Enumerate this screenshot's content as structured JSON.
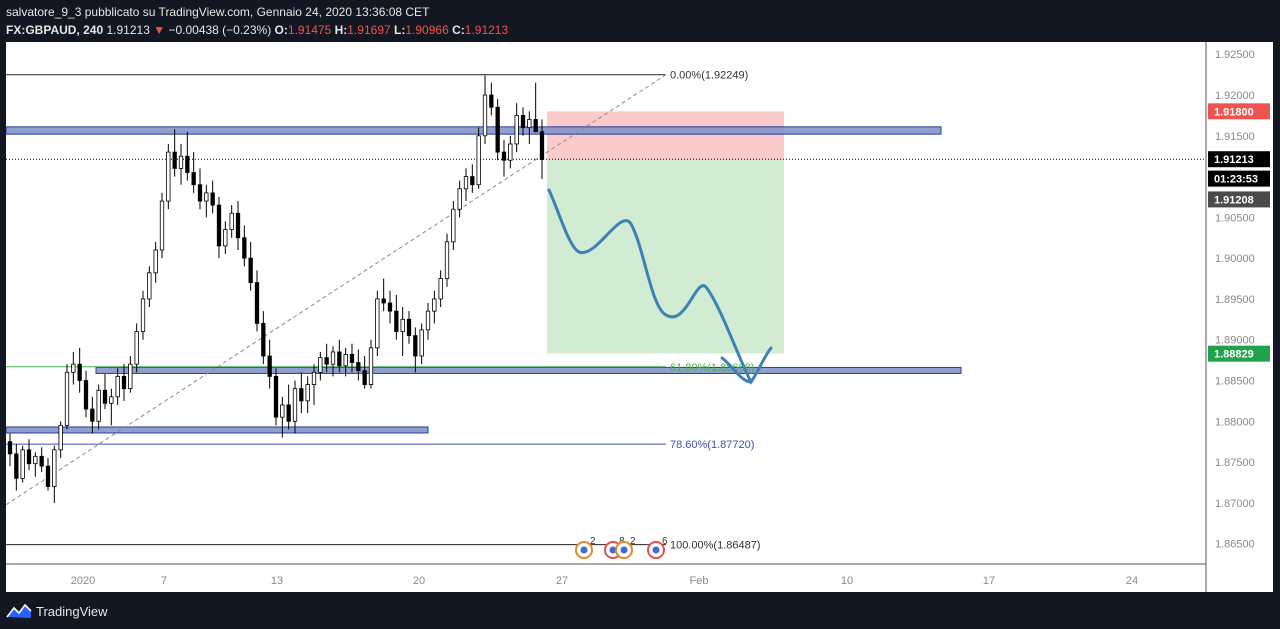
{
  "header": {
    "author_line": "salvatore_9_3 pubblicato su TradingView.com, Gennaio 24, 2020 13:36:08 CET",
    "symbol": "FX:GBPAUD, 240",
    "last": "1.91213",
    "arrow": "▼",
    "change": "−0.00438 (−0.23%)",
    "o_label": "O:",
    "o_value": "1.91475",
    "h_label": "H:",
    "h_value": "1.91697",
    "l_label": "L:",
    "l_value": "1.90966",
    "c_label": "C:",
    "c_value": "1.91213"
  },
  "footer": {
    "brand": "TradingView"
  },
  "colors": {
    "background": "#ffffff",
    "bull": "#ffffff",
    "bear": "#000000",
    "zone": "#7b8fc8",
    "stop": "#ef5350",
    "target": "#4caf50",
    "path": "#3b82b6",
    "fib_green": "#4caf50",
    "fib_blue": "#3f51b5"
  },
  "chart_data": {
    "type": "candlestick",
    "y_range": [
      1.8625,
      1.9265
    ],
    "y_ticks": [
      "1.92500",
      "1.92000",
      "1.91500",
      "1.91000",
      "1.90500",
      "1.90000",
      "1.89500",
      "1.89000",
      "1.88500",
      "1.88000",
      "1.87500",
      "1.87000",
      "1.86500"
    ],
    "x_ticks": [
      "2020",
      "7",
      "13",
      "20",
      "27",
      "Feb",
      "10",
      "17",
      "24"
    ],
    "fib_levels": [
      {
        "label": "0.00%(1.92249)",
        "value": 1.92249
      },
      {
        "label": "61.80%(1.88668)",
        "value": 1.88668
      },
      {
        "label": "78.60%(1.87720)",
        "value": 1.8772
      },
      {
        "label": "100.00%(1.86487)",
        "value": 1.86487
      }
    ],
    "price_tags": [
      {
        "label": "1.91800",
        "value": 1.918,
        "color": "#ef5350"
      },
      {
        "label": "1.91213",
        "value": 1.91213,
        "color": "#000000"
      },
      {
        "label": "01:23:53",
        "value": 1.90975,
        "color": "#000000"
      },
      {
        "label": "1.91208",
        "value": 1.9072,
        "color": "#4a4a4a"
      },
      {
        "label": "1.88829",
        "value": 1.88829,
        "color": "#1fa24a"
      }
    ],
    "zones": [
      {
        "top": 1.9161,
        "bottom": 1.9152
      },
      {
        "top": 1.8866,
        "bottom": 1.886
      },
      {
        "top": 1.8793,
        "bottom": 1.8787
      }
    ],
    "position": {
      "stop": 1.918,
      "entry": 1.9121,
      "target": 1.8883
    },
    "current_price": 1.91213,
    "events": [
      {
        "label": "2"
      },
      {
        "label": "8"
      },
      {
        "label": "2"
      },
      {
        "label": "6"
      }
    ],
    "candles": [
      [
        1.8775,
        1.8785,
        1.8745,
        1.876
      ],
      [
        1.876,
        1.8772,
        1.8715,
        1.873
      ],
      [
        1.873,
        1.877,
        1.8725,
        1.8765
      ],
      [
        1.8765,
        1.8778,
        1.874,
        1.8748
      ],
      [
        1.8748,
        1.8762,
        1.8732,
        1.8757
      ],
      [
        1.8757,
        1.8768,
        1.8738,
        1.8745
      ],
      [
        1.8745,
        1.8755,
        1.8715,
        1.872
      ],
      [
        1.872,
        1.877,
        1.87,
        1.8765
      ],
      [
        1.8765,
        1.88,
        1.8755,
        1.8795
      ],
      [
        1.8795,
        1.887,
        1.879,
        1.886
      ],
      [
        1.886,
        1.8885,
        1.8845,
        1.887
      ],
      [
        1.887,
        1.889,
        1.8835,
        1.885
      ],
      [
        1.885,
        1.8862,
        1.8805,
        1.8815
      ],
      [
        1.8815,
        1.883,
        1.8785,
        1.88
      ],
      [
        1.88,
        1.8845,
        1.879,
        1.8838
      ],
      [
        1.8838,
        1.8858,
        1.8815,
        1.8822
      ],
      [
        1.8822,
        1.884,
        1.8795,
        1.883
      ],
      [
        1.883,
        1.8865,
        1.882,
        1.8855
      ],
      [
        1.8855,
        1.887,
        1.8825,
        1.884
      ],
      [
        1.884,
        1.888,
        1.8835,
        1.887
      ],
      [
        1.887,
        1.892,
        1.886,
        1.891
      ],
      [
        1.891,
        1.896,
        1.89,
        1.895
      ],
      [
        1.895,
        1.899,
        1.894,
        1.8982
      ],
      [
        1.8982,
        1.902,
        1.897,
        1.901
      ],
      [
        1.901,
        1.908,
        1.9,
        1.907
      ],
      [
        1.907,
        1.914,
        1.906,
        1.913
      ],
      [
        1.913,
        1.9158,
        1.91,
        1.911
      ],
      [
        1.911,
        1.914,
        1.909,
        1.9125
      ],
      [
        1.9125,
        1.9155,
        1.9095,
        1.9105
      ],
      [
        1.9105,
        1.913,
        1.908,
        1.909
      ],
      [
        1.909,
        1.911,
        1.906,
        1.907
      ],
      [
        1.907,
        1.909,
        1.905,
        1.908
      ],
      [
        1.908,
        1.9095,
        1.9055,
        1.9065
      ],
      [
        1.9065,
        1.9075,
        1.9,
        1.9015
      ],
      [
        1.9015,
        1.9045,
        1.9005,
        1.9035
      ],
      [
        1.9035,
        1.9065,
        1.9025,
        1.9055
      ],
      [
        1.9055,
        1.907,
        1.901,
        1.9025
      ],
      [
        1.9025,
        1.904,
        1.899,
        1.9
      ],
      [
        1.9,
        1.902,
        1.896,
        1.897
      ],
      [
        1.897,
        1.8985,
        1.891,
        1.892
      ],
      [
        1.892,
        1.8935,
        1.887,
        1.888
      ],
      [
        1.888,
        1.89,
        1.884,
        1.8855
      ],
      [
        1.8855,
        1.8865,
        1.8795,
        1.8805
      ],
      [
        1.8805,
        1.883,
        1.878,
        1.882
      ],
      [
        1.882,
        1.8845,
        1.879,
        1.88
      ],
      [
        1.88,
        1.885,
        1.8785,
        1.884
      ],
      [
        1.884,
        1.886,
        1.881,
        1.8825
      ],
      [
        1.8825,
        1.8855,
        1.881,
        1.8845
      ],
      [
        1.8845,
        1.887,
        1.882,
        1.886
      ],
      [
        1.886,
        1.8885,
        1.885,
        1.8878
      ],
      [
        1.8878,
        1.8895,
        1.886,
        1.887
      ],
      [
        1.887,
        1.8892,
        1.8855,
        1.8885
      ],
      [
        1.8885,
        1.89,
        1.886,
        1.8868
      ],
      [
        1.8868,
        1.889,
        1.8855,
        1.8882
      ],
      [
        1.8882,
        1.8895,
        1.886,
        1.8872
      ],
      [
        1.8872,
        1.8888,
        1.885,
        1.8862
      ],
      [
        1.8862,
        1.888,
        1.884,
        1.8845
      ],
      [
        1.8845,
        1.89,
        1.884,
        1.889
      ],
      [
        1.889,
        1.896,
        1.888,
        1.895
      ],
      [
        1.895,
        1.8975,
        1.8935,
        1.8945
      ],
      [
        1.8945,
        1.896,
        1.892,
        1.8935
      ],
      [
        1.8935,
        1.8955,
        1.89,
        1.891
      ],
      [
        1.891,
        1.894,
        1.888,
        1.8925
      ],
      [
        1.8925,
        1.8935,
        1.8895,
        1.8905
      ],
      [
        1.8905,
        1.8915,
        1.886,
        1.888
      ],
      [
        1.888,
        1.892,
        1.887,
        1.8912
      ],
      [
        1.8912,
        1.8945,
        1.89,
        1.8935
      ],
      [
        1.8935,
        1.896,
        1.892,
        1.895
      ],
      [
        1.895,
        1.8985,
        1.894,
        1.8975
      ],
      [
        1.8975,
        1.903,
        1.8965,
        1.902
      ],
      [
        1.902,
        1.907,
        1.901,
        1.906
      ],
      [
        1.906,
        1.9095,
        1.905,
        1.9085
      ],
      [
        1.9085,
        1.911,
        1.907,
        1.91
      ],
      [
        1.91,
        1.9115,
        1.908,
        1.909
      ],
      [
        1.909,
        1.916,
        1.9085,
        1.915
      ],
      [
        1.915,
        1.9224,
        1.914,
        1.92
      ],
      [
        1.92,
        1.9215,
        1.9175,
        1.9185
      ],
      [
        1.9185,
        1.9195,
        1.912,
        1.913
      ],
      [
        1.913,
        1.9145,
        1.91,
        1.912
      ],
      [
        1.912,
        1.915,
        1.911,
        1.914
      ],
      [
        1.914,
        1.919,
        1.913,
        1.9175
      ],
      [
        1.9175,
        1.9185,
        1.915,
        1.916
      ],
      [
        1.916,
        1.918,
        1.914,
        1.917
      ],
      [
        1.917,
        1.9215,
        1.916,
        1.9155
      ],
      [
        1.9155,
        1.917,
        1.9097,
        1.9121
      ]
    ]
  }
}
